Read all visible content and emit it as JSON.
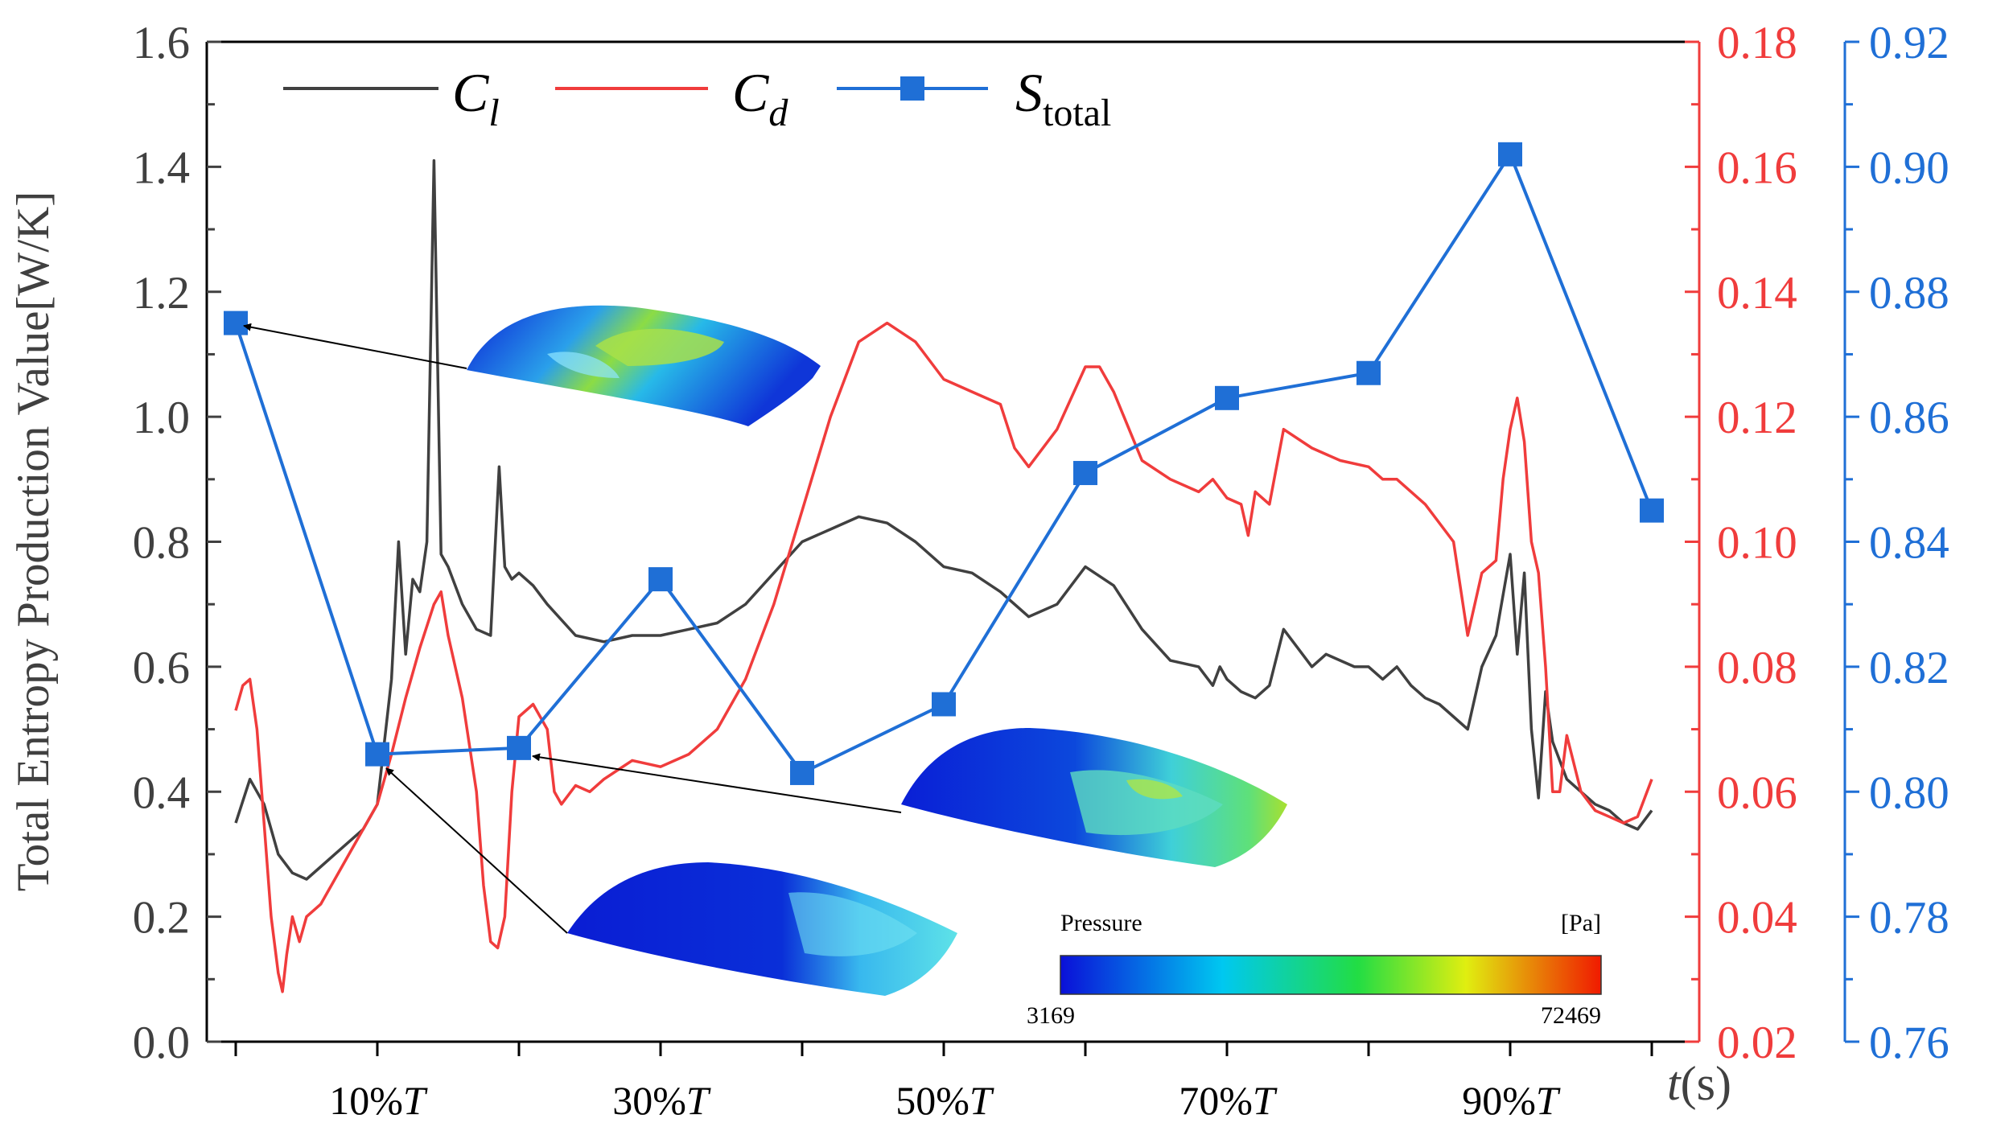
{
  "chart_data": {
    "type": "line",
    "x_ticks": [
      10,
      30,
      50,
      70,
      90
    ],
    "x_tick_labels": [
      {
        "pct": "10%",
        "var": "T"
      },
      {
        "pct": "30%",
        "var": "T"
      },
      {
        "pct": "50%",
        "var": "T"
      },
      {
        "pct": "70%",
        "var": "T"
      },
      {
        "pct": "90%",
        "var": "T"
      }
    ],
    "xlim": [
      0,
      100
    ],
    "xlabel": {
      "var": "t",
      "unit": "(s)"
    },
    "ylabel_left": "Total Entropy Production Value[W/K]",
    "ylim_left": [
      0,
      1.6
    ],
    "yticks_left": [
      "0.0",
      "0.2",
      "0.4",
      "0.6",
      "0.8",
      "1.0",
      "1.2",
      "1.4",
      "1.6"
    ],
    "ylim_right_red": [
      0.02,
      0.18
    ],
    "yticks_right_red": [
      "0.02",
      "0.04",
      "0.06",
      "0.08",
      "0.10",
      "0.12",
      "0.14",
      "0.16",
      "0.18"
    ],
    "ylim_right_blue": [
      0.76,
      0.92
    ],
    "yticks_right_blue": [
      "0.76",
      "0.78",
      "0.80",
      "0.82",
      "0.84",
      "0.86",
      "0.88",
      "0.90",
      "0.92"
    ],
    "legend": [
      {
        "name": "C",
        "sub": "l",
        "color": "#404040"
      },
      {
        "name": "C",
        "sub": "d",
        "color": "#f03c3c"
      },
      {
        "name": "S",
        "sub": "total",
        "color": "#1f6fd6"
      }
    ],
    "series": [
      {
        "name": "Cl",
        "axis": "left",
        "color": "#404040",
        "x": [
          0,
          1,
          2,
          3,
          4,
          5,
          6,
          7,
          8,
          9,
          10,
          11,
          11.5,
          12,
          12.5,
          13,
          13.5,
          14,
          14.5,
          15,
          16,
          17,
          18,
          18.6,
          19,
          19.5,
          20,
          21,
          22,
          24,
          26,
          28,
          30,
          32,
          34,
          36,
          38,
          40,
          42,
          44,
          46,
          48,
          50,
          52,
          54,
          56,
          58,
          60,
          62,
          64,
          66,
          68,
          69,
          69.5,
          70,
          71,
          72,
          73,
          74,
          75,
          76,
          77,
          78,
          79,
          80,
          81,
          82,
          83,
          84,
          85,
          86,
          87,
          88,
          89,
          90,
          90.5,
          91,
          91.5,
          92,
          92.5,
          93,
          94,
          95,
          96,
          97,
          98,
          99,
          100
        ],
        "values": [
          0.35,
          0.42,
          0.38,
          0.3,
          0.27,
          0.26,
          0.28,
          0.3,
          0.32,
          0.34,
          0.38,
          0.58,
          0.8,
          0.62,
          0.74,
          0.72,
          0.8,
          1.41,
          0.78,
          0.76,
          0.7,
          0.66,
          0.65,
          0.92,
          0.76,
          0.74,
          0.75,
          0.73,
          0.7,
          0.65,
          0.64,
          0.65,
          0.65,
          0.66,
          0.67,
          0.7,
          0.75,
          0.8,
          0.82,
          0.84,
          0.83,
          0.8,
          0.76,
          0.75,
          0.72,
          0.68,
          0.7,
          0.76,
          0.73,
          0.66,
          0.61,
          0.6,
          0.57,
          0.6,
          0.58,
          0.56,
          0.55,
          0.57,
          0.66,
          0.63,
          0.6,
          0.62,
          0.61,
          0.6,
          0.6,
          0.58,
          0.6,
          0.57,
          0.55,
          0.54,
          0.52,
          0.5,
          0.6,
          0.65,
          0.78,
          0.62,
          0.75,
          0.5,
          0.39,
          0.56,
          0.48,
          0.42,
          0.4,
          0.38,
          0.37,
          0.35,
          0.34,
          0.37
        ]
      },
      {
        "name": "Cd",
        "axis": "right_red",
        "color": "#f03c3c",
        "x": [
          0,
          0.5,
          1,
          1.5,
          2,
          2.5,
          3,
          3.3,
          3.6,
          4,
          4.5,
          5,
          6,
          7,
          8,
          9,
          10,
          11,
          12,
          13,
          14,
          14.5,
          15,
          16,
          17,
          17.5,
          18,
          18.5,
          19,
          19.5,
          20,
          21,
          22,
          22.5,
          23,
          24,
          25,
          26,
          28,
          30,
          32,
          34,
          36,
          38,
          40,
          42,
          44,
          46,
          48,
          50,
          52,
          54,
          55,
          56,
          58,
          60,
          61,
          62,
          64,
          66,
          68,
          69,
          70,
          71,
          71.5,
          72,
          73,
          74,
          76,
          78,
          80,
          81,
          82,
          84,
          86,
          87,
          87.5,
          88,
          89,
          89.5,
          90,
          90.5,
          91,
          91.5,
          92,
          92.5,
          93,
          93.5,
          94,
          95,
          96,
          97,
          98,
          99,
          99.5,
          100
        ],
        "values": [
          0.073,
          0.077,
          0.078,
          0.07,
          0.055,
          0.04,
          0.031,
          0.028,
          0.034,
          0.04,
          0.036,
          0.04,
          0.042,
          0.046,
          0.05,
          0.054,
          0.058,
          0.066,
          0.075,
          0.083,
          0.09,
          0.092,
          0.085,
          0.075,
          0.06,
          0.045,
          0.036,
          0.035,
          0.04,
          0.06,
          0.072,
          0.074,
          0.07,
          0.06,
          0.058,
          0.061,
          0.06,
          0.062,
          0.065,
          0.064,
          0.066,
          0.07,
          0.078,
          0.09,
          0.105,
          0.12,
          0.132,
          0.135,
          0.132,
          0.126,
          0.124,
          0.122,
          0.115,
          0.112,
          0.118,
          0.128,
          0.128,
          0.124,
          0.113,
          0.11,
          0.108,
          0.11,
          0.107,
          0.106,
          0.101,
          0.108,
          0.106,
          0.118,
          0.115,
          0.113,
          0.112,
          0.11,
          0.11,
          0.106,
          0.1,
          0.085,
          0.09,
          0.095,
          0.097,
          0.11,
          0.118,
          0.123,
          0.116,
          0.1,
          0.095,
          0.08,
          0.06,
          0.06,
          0.069,
          0.06,
          0.057,
          0.056,
          0.055,
          0.056,
          0.059,
          0.062
        ]
      },
      {
        "name": "Stotal",
        "axis": "right_blue",
        "color": "#1f6fd6",
        "x": [
          0,
          10,
          20,
          30,
          40,
          50,
          60,
          70,
          80,
          90,
          100
        ],
        "values": [
          0.875,
          0.806,
          0.807,
          0.834,
          0.803,
          0.814,
          0.851,
          0.863,
          0.867,
          0.902,
          0.845
        ]
      }
    ],
    "annotations": [
      {
        "from_point": 0,
        "to": "contour-1"
      },
      {
        "from_point": 1,
        "to": "contour-3"
      },
      {
        "from_point": 2,
        "to": "contour-2"
      }
    ],
    "colorbar": {
      "title": "Pressure",
      "unit": "[Pa]",
      "min": "3169",
      "max": "72469"
    }
  }
}
